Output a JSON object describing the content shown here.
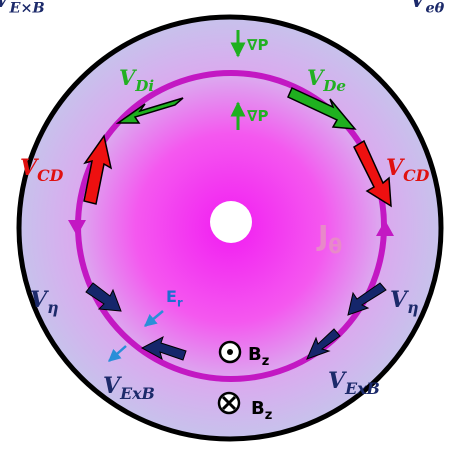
{
  "corner_labels": {
    "top_left": "V_{E×B}",
    "top_right": "V_{eθ}"
  },
  "velocities": {
    "diamagnetic_ion": "V_{Di}",
    "diamagnetic_electron": "V_{De}",
    "current_drive_left": "V_{CD}",
    "current_drive_right": "V_{CD}",
    "resistive_left": "V_η",
    "resistive_right": "V_η",
    "exb_left": "V_{ExB}",
    "exb_right": "V_{ExB}"
  },
  "gradients": {
    "upper": "∇P",
    "lower": "∇P"
  },
  "fields": {
    "radial_electric": "E_r",
    "current": "J_θ",
    "bz_out": "B_z",
    "bz_in": "B_z"
  },
  "colors": {
    "ring": "#c318c3",
    "glow": "#f21df2",
    "disk_edge": "#c7c2ec",
    "diamagnetic_arrow": "#1fb01f",
    "diamagnetic_text": "#22b022",
    "cd_arrow": "#ee1010",
    "cd_text": "#e01010",
    "navy_arrow": "#15266b",
    "navy_text": "#1c2a6a",
    "er_arrow": "#2a8fd8",
    "er_text": "#1c6fd0",
    "current_text": "#e889c9",
    "outline": "#000000"
  }
}
